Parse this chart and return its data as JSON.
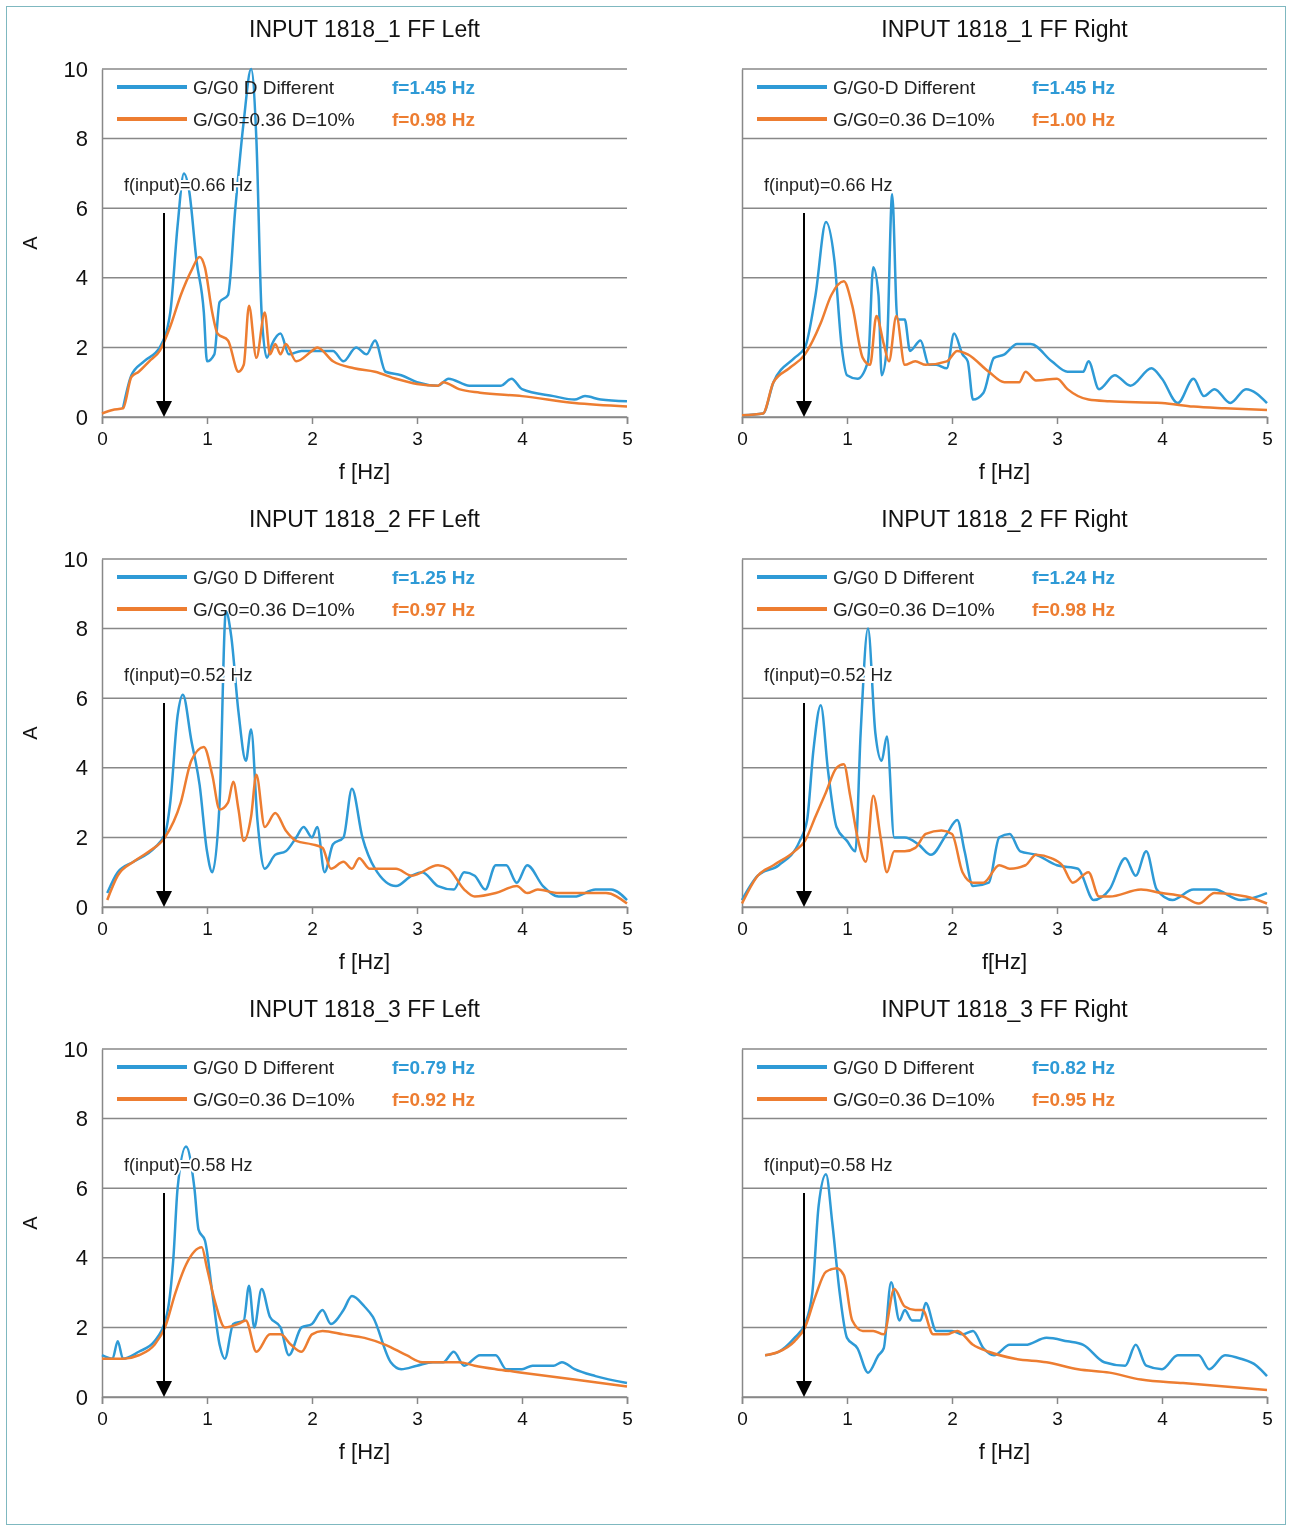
{
  "chart_data": [
    {
      "type": "line",
      "title": "INPUT 1818_1 FF Left",
      "xlabel": "f [Hz]",
      "ylabel": "A",
      "xlim": [
        0,
        5
      ],
      "xticks": [
        0,
        1,
        2,
        3,
        4,
        5
      ],
      "ylim": [
        0,
        10
      ],
      "yticks": [
        0,
        2,
        4,
        6,
        8,
        10
      ],
      "grid": "y",
      "legend": "top left",
      "annotations": [
        "f=1.45 Hz",
        "f=0.98 Hz",
        "f(input)=0.66 Hz"
      ],
      "series": [
        {
          "name": "G/G0 D Different",
          "color": "#2e9ad6",
          "x": [
            0.2,
            0.28,
            0.4,
            0.55,
            0.65,
            0.72,
            0.78,
            0.83,
            0.9,
            0.97,
            1.0,
            1.07,
            1.12,
            1.2,
            1.27,
            1.35,
            1.42,
            1.47,
            1.52,
            1.57,
            1.62,
            1.7,
            1.78,
            1.9,
            2.05,
            2.2,
            2.3,
            2.42,
            2.52,
            2.6,
            2.7,
            2.85,
            3.0,
            3.2,
            3.3,
            3.5,
            3.8,
            3.9,
            4.0,
            4.3,
            4.5,
            4.6,
            4.75,
            5.0
          ],
          "values": [
            0.25,
            1.2,
            1.6,
            2.0,
            3.0,
            5.5,
            7.0,
            6.5,
            4.5,
            3.0,
            1.6,
            1.8,
            3.3,
            3.5,
            6.0,
            8.5,
            10.0,
            8.0,
            3.0,
            1.7,
            2.1,
            2.4,
            1.8,
            1.9,
            1.9,
            1.9,
            1.6,
            2.0,
            1.8,
            2.2,
            1.3,
            1.2,
            1.0,
            0.9,
            1.1,
            0.9,
            0.9,
            1.1,
            0.8,
            0.6,
            0.5,
            0.6,
            0.5,
            0.45
          ]
        },
        {
          "name": "G/G0=0.36 D=10%",
          "color": "#ed7d31",
          "x": [
            0,
            0.1,
            0.2,
            0.28,
            0.35,
            0.45,
            0.55,
            0.65,
            0.75,
            0.85,
            0.93,
            0.98,
            1.05,
            1.1,
            1.2,
            1.3,
            1.35,
            1.4,
            1.47,
            1.55,
            1.6,
            1.65,
            1.7,
            1.75,
            1.85,
            2.0,
            2.05,
            2.2,
            2.4,
            2.6,
            2.8,
            3.0,
            3.2,
            3.25,
            3.4,
            3.6,
            4.0,
            4.5,
            5.0
          ],
          "values": [
            0.1,
            0.2,
            0.25,
            1.15,
            1.3,
            1.6,
            1.9,
            2.6,
            3.5,
            4.2,
            4.6,
            4.3,
            3.0,
            2.4,
            2.2,
            1.3,
            1.5,
            3.2,
            1.7,
            3.0,
            1.8,
            2.1,
            1.8,
            2.1,
            1.6,
            1.9,
            2.0,
            1.6,
            1.4,
            1.3,
            1.1,
            0.95,
            0.9,
            1.0,
            0.8,
            0.7,
            0.6,
            0.4,
            0.3
          ]
        }
      ]
    },
    {
      "type": "line",
      "title": "INPUT 1818_1 FF Right",
      "xlabel": "f [Hz]",
      "xlim": [
        0,
        5
      ],
      "xticks": [
        0,
        1,
        2,
        3,
        4,
        5
      ],
      "ylim": [
        0,
        10
      ],
      "yticks": [
        0,
        2,
        4,
        6,
        8,
        10
      ],
      "grid": "y",
      "legend": "top left",
      "tick_labels": "x",
      "annotations": [
        "f=1.45 Hz",
        "f=1.00 Hz",
        "f(input)=0.66 Hz"
      ],
      "series": [
        {
          "name": "G/G0-D Different",
          "color": "#2e9ad6",
          "x": [
            0,
            0.2,
            0.3,
            0.5,
            0.6,
            0.7,
            0.8,
            0.88,
            0.95,
            1.0,
            1.1,
            1.2,
            1.25,
            1.3,
            1.33,
            1.38,
            1.43,
            1.48,
            1.55,
            1.6,
            1.7,
            1.78,
            1.85,
            1.95,
            2.02,
            2.1,
            2.15,
            2.2,
            2.3,
            2.4,
            2.5,
            2.62,
            2.75,
            2.95,
            3.1,
            3.25,
            3.3,
            3.4,
            3.55,
            3.7,
            3.9,
            4.0,
            4.15,
            4.3,
            4.4,
            4.5,
            4.65,
            4.8,
            5.0
          ],
          "values": [
            0.05,
            0.1,
            1.0,
            1.7,
            2.0,
            3.5,
            5.6,
            4.5,
            2.0,
            1.2,
            1.1,
            1.6,
            4.3,
            3.5,
            1.2,
            2.0,
            6.4,
            2.8,
            2.8,
            1.9,
            2.2,
            1.5,
            1.5,
            1.4,
            2.4,
            1.8,
            1.6,
            0.5,
            0.7,
            1.7,
            1.8,
            2.1,
            2.1,
            1.6,
            1.3,
            1.3,
            1.6,
            0.8,
            1.2,
            0.9,
            1.4,
            1.1,
            0.4,
            1.1,
            0.6,
            0.8,
            0.4,
            0.8,
            0.4
          ]
        },
        {
          "name": "G/G0=0.36 D=10%",
          "color": "#ed7d31",
          "x": [
            0,
            0.2,
            0.3,
            0.45,
            0.6,
            0.75,
            0.85,
            0.97,
            1.05,
            1.15,
            1.22,
            1.28,
            1.35,
            1.4,
            1.47,
            1.55,
            1.65,
            1.75,
            1.95,
            2.05,
            2.15,
            2.35,
            2.5,
            2.64,
            2.7,
            2.8,
            3.0,
            3.1,
            3.3,
            3.5,
            4.0,
            4.3,
            4.6,
            5.0
          ],
          "values": [
            0.05,
            0.1,
            1.0,
            1.4,
            1.8,
            2.7,
            3.5,
            3.9,
            3.2,
            1.7,
            1.5,
            2.9,
            2.1,
            1.6,
            2.9,
            1.5,
            1.6,
            1.5,
            1.6,
            1.9,
            1.8,
            1.3,
            1.0,
            1.0,
            1.3,
            1.05,
            1.1,
            0.8,
            0.5,
            0.45,
            0.4,
            0.3,
            0.25,
            0.2
          ]
        }
      ]
    },
    {
      "type": "line",
      "title": "INPUT 1818_2 FF Left",
      "xlabel": "f [Hz]",
      "ylabel": "A",
      "xlim": [
        0,
        5
      ],
      "xticks": [
        0,
        1,
        2,
        3,
        4,
        5
      ],
      "ylim": [
        0,
        10
      ],
      "yticks": [
        0,
        2,
        4,
        6,
        8,
        10
      ],
      "grid": "y",
      "legend": "top left",
      "annotations": [
        "f=1.25 Hz",
        "f=0.97 Hz",
        "f(input)=0.52 Hz"
      ],
      "series": [
        {
          "name": "G/G0 D Different",
          "color": "#2e9ad6",
          "x": [
            0.05,
            0.15,
            0.3,
            0.5,
            0.6,
            0.65,
            0.72,
            0.77,
            0.85,
            0.93,
            1.0,
            1.05,
            1.12,
            1.18,
            1.23,
            1.3,
            1.37,
            1.42,
            1.48,
            1.55,
            1.65,
            1.75,
            1.85,
            1.92,
            2.0,
            2.05,
            2.12,
            2.2,
            2.3,
            2.38,
            2.48,
            2.6,
            2.8,
            2.95,
            3.05,
            3.2,
            3.35,
            3.45,
            3.55,
            3.65,
            3.75,
            3.85,
            3.95,
            4.05,
            4.2,
            4.35,
            4.5,
            4.7,
            4.85,
            5.0
          ],
          "values": [
            0.4,
            1.0,
            1.3,
            1.7,
            2.1,
            3.0,
            5.5,
            6.1,
            4.8,
            3.5,
            1.6,
            1.0,
            3.0,
            8.5,
            7.8,
            5.6,
            4.2,
            5.1,
            2.5,
            1.1,
            1.5,
            1.6,
            2.0,
            2.3,
            2.0,
            2.3,
            1.0,
            1.8,
            2.0,
            3.4,
            2.0,
            1.1,
            0.6,
            0.9,
            1.0,
            0.6,
            0.5,
            1.0,
            0.9,
            0.5,
            1.2,
            1.2,
            0.7,
            1.2,
            0.6,
            0.3,
            0.3,
            0.5,
            0.5,
            0.2
          ]
        },
        {
          "name": "G/G0=0.36 D=10%",
          "color": "#ed7d31",
          "x": [
            0.05,
            0.15,
            0.3,
            0.45,
            0.6,
            0.75,
            0.85,
            0.97,
            1.05,
            1.12,
            1.2,
            1.25,
            1.3,
            1.35,
            1.42,
            1.47,
            1.55,
            1.65,
            1.75,
            1.85,
            2.0,
            2.1,
            2.18,
            2.3,
            2.38,
            2.45,
            2.55,
            2.8,
            2.95,
            3.2,
            3.3,
            3.45,
            3.55,
            3.75,
            3.95,
            4.05,
            4.15,
            4.35,
            4.5,
            4.8,
            5.0
          ],
          "values": [
            0.2,
            0.9,
            1.3,
            1.6,
            2.0,
            3.0,
            4.2,
            4.6,
            3.8,
            2.8,
            3.0,
            3.6,
            2.8,
            1.9,
            2.6,
            3.8,
            2.3,
            2.7,
            2.2,
            1.9,
            1.8,
            1.7,
            1.1,
            1.3,
            1.1,
            1.4,
            1.1,
            1.1,
            0.9,
            1.2,
            1.1,
            0.5,
            0.3,
            0.4,
            0.6,
            0.4,
            0.5,
            0.4,
            0.4,
            0.4,
            0.1
          ]
        }
      ]
    },
    {
      "type": "line",
      "title": "INPUT 1818_2 FF Right",
      "xlabel": "f[Hz]",
      "xlim": [
        0,
        5
      ],
      "xticks": [
        0,
        1,
        2,
        3,
        4,
        5
      ],
      "ylim": [
        0,
        10
      ],
      "yticks": [
        0,
        2,
        4,
        6,
        8,
        10
      ],
      "grid": "y",
      "legend": "top left",
      "tick_labels": "x",
      "annotations": [
        "f=1.24 Hz",
        "f=0.98 Hz",
        "f(input)=0.52 Hz"
      ],
      "series": [
        {
          "name": "G/G0 D Different",
          "color": "#2e9ad6",
          "x": [
            0,
            0.15,
            0.35,
            0.55,
            0.62,
            0.68,
            0.75,
            0.82,
            0.9,
            1.0,
            1.08,
            1.13,
            1.2,
            1.27,
            1.33,
            1.38,
            1.45,
            1.55,
            1.68,
            1.8,
            1.95,
            2.05,
            2.12,
            2.2,
            2.35,
            2.45,
            2.55,
            2.65,
            2.8,
            3.0,
            3.2,
            3.35,
            3.5,
            3.65,
            3.75,
            3.85,
            3.95,
            4.1,
            4.3,
            4.5,
            4.75,
            5.0
          ],
          "values": [
            0.2,
            0.9,
            1.2,
            1.9,
            2.5,
            4.5,
            5.8,
            3.9,
            2.3,
            1.9,
            1.6,
            5.0,
            8.0,
            5.0,
            4.2,
            4.9,
            2.0,
            2.0,
            1.8,
            1.5,
            2.1,
            2.5,
            1.6,
            0.6,
            0.7,
            2.0,
            2.1,
            1.6,
            1.5,
            1.2,
            1.1,
            0.2,
            0.5,
            1.4,
            0.9,
            1.6,
            0.5,
            0.2,
            0.5,
            0.5,
            0.2,
            0.4
          ]
        },
        {
          "name": "G/G0=0.36 D=10%",
          "color": "#ed7d31",
          "x": [
            0,
            0.15,
            0.3,
            0.5,
            0.6,
            0.7,
            0.8,
            0.9,
            0.97,
            1.03,
            1.1,
            1.18,
            1.25,
            1.32,
            1.38,
            1.45,
            1.55,
            1.65,
            1.75,
            1.9,
            2.0,
            2.1,
            2.2,
            2.3,
            2.45,
            2.55,
            2.7,
            2.8,
            2.95,
            3.05,
            3.15,
            3.3,
            3.4,
            3.5,
            3.8,
            4.0,
            4.2,
            4.35,
            4.5,
            4.8,
            5.0
          ],
          "values": [
            0.1,
            0.9,
            1.2,
            1.6,
            1.9,
            2.6,
            3.3,
            4.0,
            4.1,
            3.2,
            2.0,
            1.3,
            3.2,
            2.0,
            1.0,
            1.6,
            1.6,
            1.7,
            2.1,
            2.2,
            2.1,
            1.0,
            0.7,
            0.7,
            1.2,
            1.1,
            1.2,
            1.5,
            1.4,
            1.2,
            0.7,
            1.0,
            0.3,
            0.3,
            0.5,
            0.4,
            0.3,
            0.1,
            0.4,
            0.3,
            0.1
          ]
        }
      ]
    },
    {
      "type": "line",
      "title": "INPUT 1818_3 FF Left",
      "xlabel": "f [Hz]",
      "ylabel": "A",
      "xlim": [
        0,
        5
      ],
      "xticks": [
        0,
        1,
        2,
        3,
        4,
        5
      ],
      "ylim": [
        0,
        10
      ],
      "yticks": [
        0,
        2,
        4,
        6,
        8,
        10
      ],
      "grid": "y",
      "legend": "top left",
      "annotations": [
        "f=0.79 Hz",
        "f=0.92 Hz",
        "f(input)=0.58 Hz"
      ],
      "series": [
        {
          "name": "G/G0 D Different",
          "color": "#2e9ad6",
          "x": [
            0,
            0.1,
            0.15,
            0.2,
            0.35,
            0.5,
            0.62,
            0.68,
            0.72,
            0.8,
            0.88,
            0.92,
            0.98,
            1.05,
            1.12,
            1.17,
            1.25,
            1.35,
            1.4,
            1.45,
            1.52,
            1.6,
            1.7,
            1.78,
            1.9,
            2.0,
            2.1,
            2.18,
            2.3,
            2.38,
            2.5,
            2.58,
            2.75,
            2.85,
            3.0,
            3.15,
            3.25,
            3.35,
            3.45,
            3.6,
            3.75,
            3.85,
            4.0,
            4.1,
            4.3,
            4.38,
            4.5,
            4.7,
            5.0
          ],
          "values": [
            1.2,
            1.1,
            1.6,
            1.1,
            1.3,
            1.6,
            2.4,
            4.0,
            6.0,
            7.2,
            6.0,
            4.8,
            4.5,
            3.0,
            1.5,
            1.1,
            2.1,
            2.2,
            3.2,
            2.0,
            3.1,
            2.3,
            2.0,
            1.2,
            2.0,
            2.1,
            2.5,
            2.1,
            2.5,
            2.9,
            2.6,
            2.3,
            1.0,
            0.8,
            0.9,
            1.0,
            1.0,
            1.3,
            0.9,
            1.2,
            1.2,
            0.8,
            0.8,
            0.9,
            0.9,
            1.0,
            0.8,
            0.6,
            0.4
          ]
        },
        {
          "name": "G/G0=0.36 D=10%",
          "color": "#ed7d31",
          "x": [
            0,
            0.2,
            0.35,
            0.5,
            0.6,
            0.7,
            0.8,
            0.95,
            1.0,
            1.08,
            1.17,
            1.3,
            1.37,
            1.47,
            1.6,
            1.7,
            1.8,
            1.9,
            2.0,
            2.1,
            2.3,
            2.5,
            2.7,
            2.9,
            3.05,
            3.4,
            3.55,
            3.75,
            4.0,
            4.5,
            5.0
          ],
          "values": [
            1.1,
            1.1,
            1.2,
            1.5,
            2.0,
            3.0,
            3.8,
            4.3,
            3.7,
            2.7,
            2.0,
            2.1,
            2.2,
            1.3,
            1.8,
            1.8,
            1.5,
            1.3,
            1.8,
            1.9,
            1.8,
            1.7,
            1.5,
            1.2,
            1.0,
            1.0,
            0.9,
            0.8,
            0.7,
            0.5,
            0.3
          ]
        }
      ]
    },
    {
      "type": "line",
      "title": "INPUT 1818_3 FF Right",
      "xlabel": "f [Hz]",
      "xlim": [
        0,
        5
      ],
      "xticks": [
        0,
        1,
        2,
        3,
        4,
        5
      ],
      "ylim": [
        0,
        10
      ],
      "yticks": [
        0,
        2,
        4,
        6,
        8,
        10
      ],
      "grid": "y",
      "legend": "top left",
      "tick_labels": "x",
      "annotations": [
        "f=0.82 Hz",
        "f=0.95 Hz",
        "f(input)=0.58 Hz"
      ],
      "series": [
        {
          "name": "G/G0 D Different",
          "color": "#2e9ad6",
          "x": [
            0.22,
            0.35,
            0.5,
            0.6,
            0.67,
            0.73,
            0.8,
            0.86,
            0.93,
            1.0,
            1.1,
            1.2,
            1.3,
            1.35,
            1.42,
            1.5,
            1.55,
            1.62,
            1.7,
            1.75,
            1.85,
            2.0,
            2.1,
            2.2,
            2.3,
            2.4,
            2.55,
            2.7,
            2.9,
            3.1,
            3.25,
            3.45,
            3.65,
            3.75,
            3.85,
            4.0,
            4.15,
            4.35,
            4.45,
            4.6,
            4.75,
            4.9,
            5.0
          ],
          "values": [
            1.2,
            1.3,
            1.7,
            2.1,
            3.0,
            5.5,
            6.4,
            5.0,
            3.0,
            1.7,
            1.4,
            0.7,
            1.2,
            1.4,
            3.3,
            2.2,
            2.5,
            2.2,
            2.2,
            2.7,
            1.9,
            1.9,
            1.8,
            1.9,
            1.4,
            1.2,
            1.5,
            1.5,
            1.7,
            1.6,
            1.5,
            1.0,
            0.9,
            1.5,
            0.9,
            0.8,
            1.2,
            1.2,
            0.8,
            1.2,
            1.1,
            0.9,
            0.6
          ]
        },
        {
          "name": "G/G0=0.36 D=10%",
          "color": "#ed7d31",
          "x": [
            0.22,
            0.35,
            0.5,
            0.6,
            0.7,
            0.8,
            0.9,
            0.97,
            1.05,
            1.15,
            1.25,
            1.35,
            1.45,
            1.55,
            1.65,
            1.72,
            1.82,
            1.95,
            2.05,
            2.2,
            2.35,
            2.6,
            2.9,
            3.2,
            3.5,
            3.8,
            4.2,
            5.0
          ],
          "values": [
            1.2,
            1.3,
            1.6,
            2.0,
            2.9,
            3.6,
            3.7,
            3.5,
            2.2,
            1.9,
            1.9,
            1.8,
            3.1,
            2.6,
            2.5,
            2.5,
            1.8,
            1.8,
            1.9,
            1.5,
            1.3,
            1.1,
            1.0,
            0.8,
            0.7,
            0.5,
            0.4,
            0.2
          ]
        }
      ]
    }
  ]
}
